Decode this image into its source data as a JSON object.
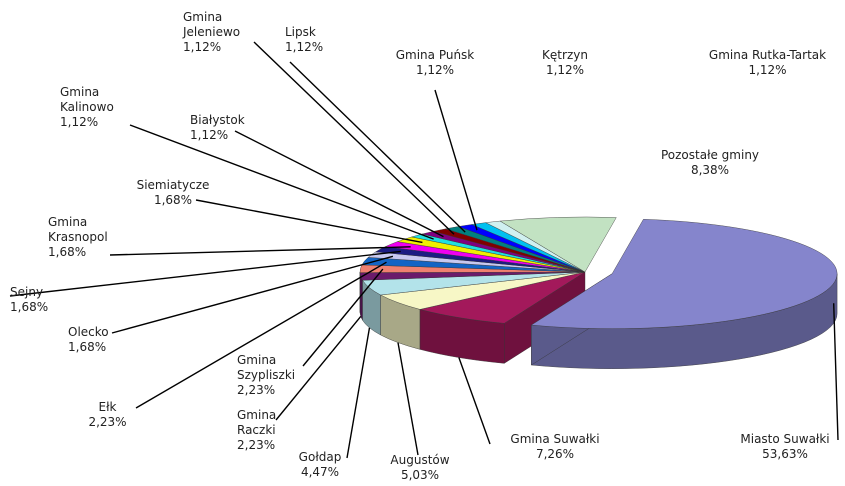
{
  "chart_data": {
    "type": "pie",
    "categories": [
      "Miasto Suwałki",
      "Gmina Suwałki",
      "Augustów",
      "Gołdap",
      "Gmina Raczki",
      "Gmina Szypliszki",
      "Ełk",
      "Olecko",
      "Sejny",
      "Gmina Krasnopol",
      "Siemiatycze",
      "Gmina Kalinowo",
      "Białystok",
      "Gmina Jeleniewo",
      "Lipsk",
      "Gmina Puńsk",
      "Kętrzyn",
      "Gmina Rutka-Tartak",
      "Pozostałe gminy"
    ],
    "values": [
      53.63,
      7.26,
      5.03,
      4.47,
      2.23,
      2.23,
      2.23,
      1.68,
      1.68,
      1.68,
      1.68,
      1.12,
      1.12,
      1.12,
      1.12,
      1.12,
      1.12,
      1.12,
      8.38
    ],
    "value_labels": [
      "53,63%",
      "7,26%",
      "5,03%",
      "4,47%",
      "2,23%",
      "2,23%",
      "2,23%",
      "1,68%",
      "1,68%",
      "1,68%",
      "1,68%",
      "1,12%",
      "1,12%",
      "1,12%",
      "1,12%",
      "1,12%",
      "1,12%",
      "1,12%",
      "8,38%"
    ],
    "colors": [
      "#8585cc",
      "#a3195b",
      "#f7f7c6",
      "#b3e3ea",
      "#6b1b6b",
      "#f08070",
      "#1464c4",
      "#c8c8f0",
      "#1c1c82",
      "#f000f0",
      "#f0f000",
      "#20e0e0",
      "#800080",
      "#800000",
      "#008080",
      "#0000ff",
      "#00c0f0",
      "#d0f0f0",
      "#c2e2c2"
    ]
  }
}
